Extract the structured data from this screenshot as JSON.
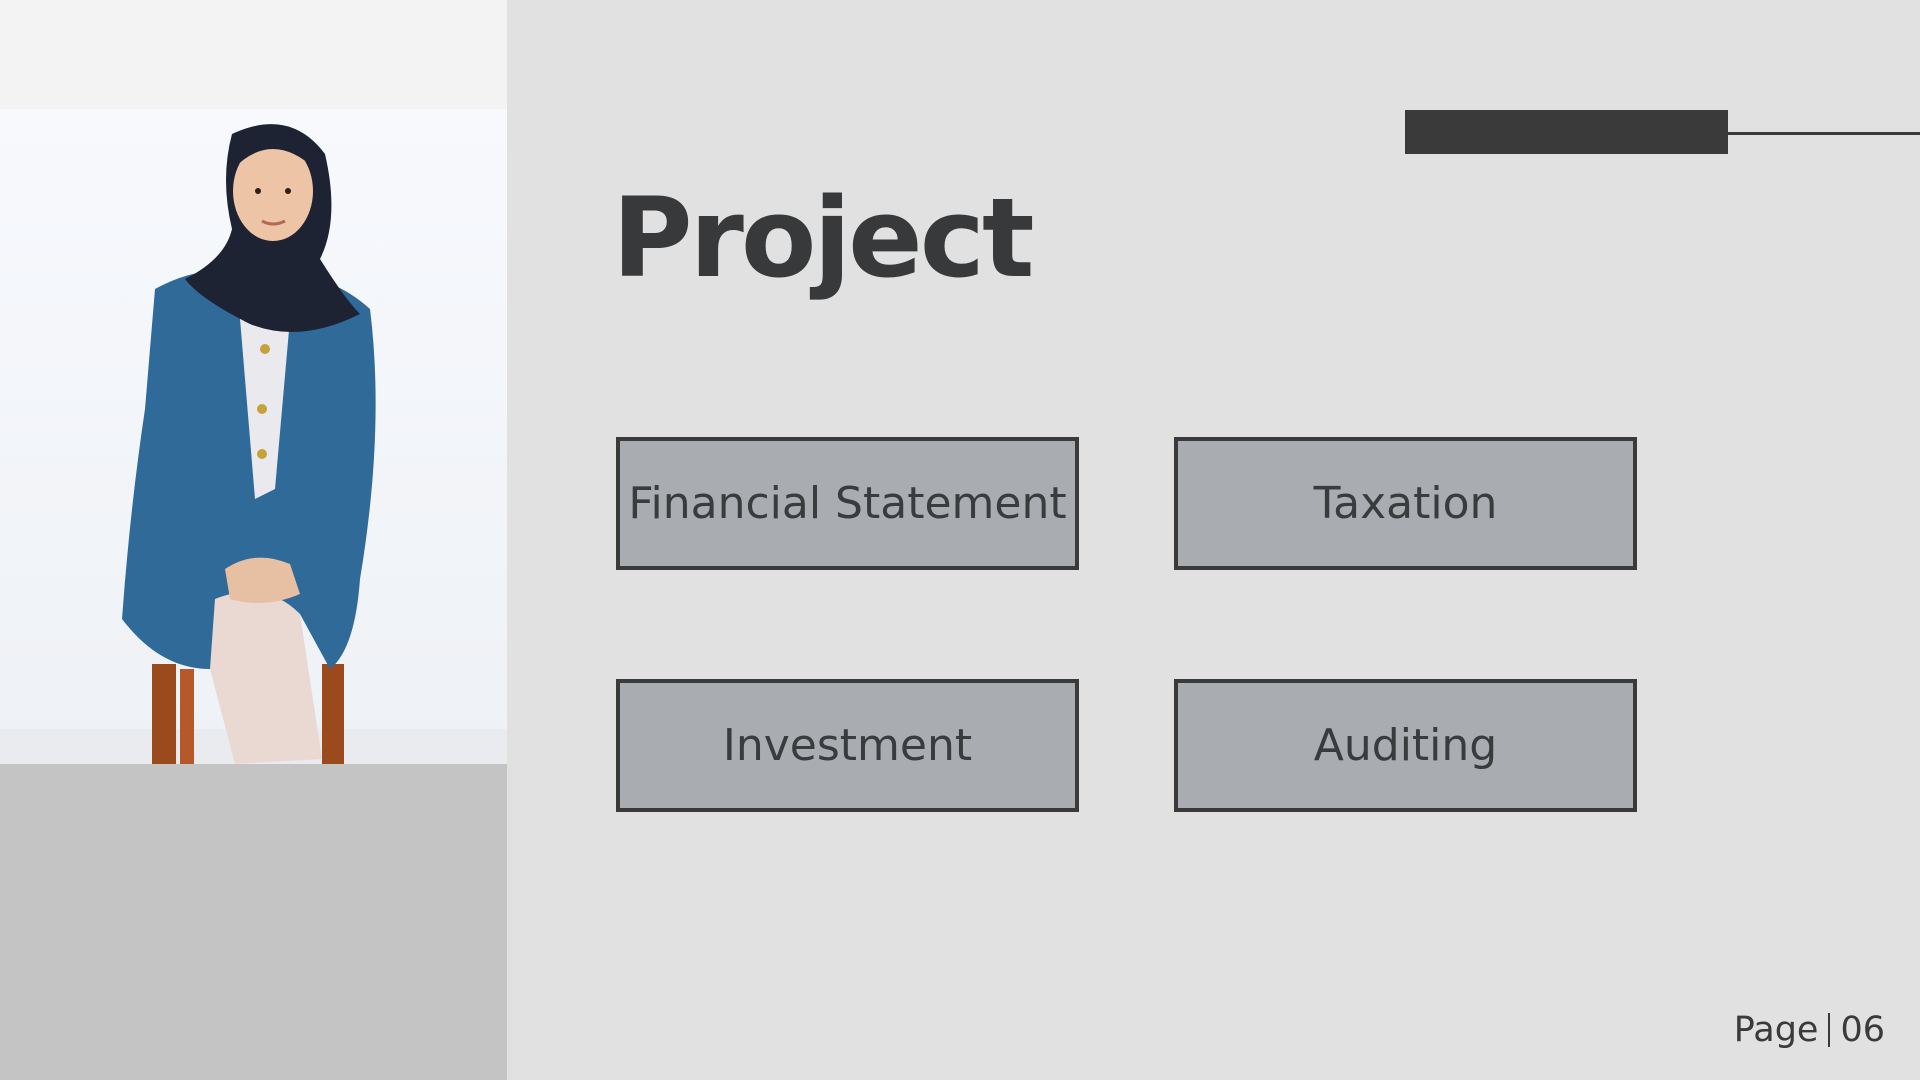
{
  "slide": {
    "title": "Project",
    "projects": [
      {
        "label": "Financial Statement"
      },
      {
        "label": "Taxation"
      },
      {
        "label": "Investment"
      },
      {
        "label": "Auditing"
      }
    ],
    "footer": {
      "page_label": "Page",
      "page_number": "06"
    }
  },
  "colors": {
    "background": "#e1e1e1",
    "dark": "#3a3a3b",
    "box_fill": "#a9adb1",
    "left_panel": "#c4c4c4"
  }
}
